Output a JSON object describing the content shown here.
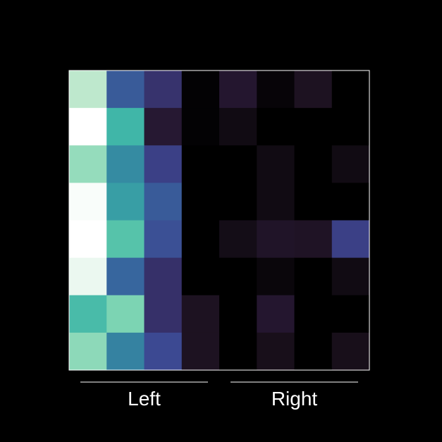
{
  "chart_data": {
    "type": "heatmap",
    "title": "",
    "xlabel": "",
    "ylabel": "",
    "rows": 8,
    "cols": 8,
    "colormap": "mako",
    "value_range": [
      0,
      1
    ],
    "column_groups": [
      {
        "label": "Left",
        "columns": [
          0,
          1,
          2,
          3
        ]
      },
      {
        "label": "Right",
        "columns": [
          4,
          5,
          6,
          7
        ]
      }
    ],
    "values": [
      [
        0.9,
        0.45,
        0.28,
        0.01,
        0.13,
        0.02,
        0.09,
        0.0
      ],
      [
        1.0,
        0.7,
        0.14,
        0.01,
        0.05,
        0.0,
        0.0,
        0.0
      ],
      [
        0.85,
        0.58,
        0.33,
        0.0,
        0.0,
        0.05,
        0.0,
        0.05
      ],
      [
        0.99,
        0.63,
        0.45,
        0.0,
        0.0,
        0.05,
        0.0,
        0.0
      ],
      [
        1.0,
        0.75,
        0.4,
        0.0,
        0.06,
        0.11,
        0.1,
        0.33
      ],
      [
        0.97,
        0.5,
        0.27,
        0.0,
        0.0,
        0.03,
        0.0,
        0.05
      ],
      [
        0.72,
        0.82,
        0.27,
        0.09,
        0.0,
        0.13,
        0.0,
        0.0
      ],
      [
        0.84,
        0.56,
        0.37,
        0.09,
        0.0,
        0.07,
        0.0,
        0.07
      ]
    ]
  },
  "colors": {
    "background": "#000000",
    "frame": "#ffffff",
    "bracket": "#ffffff",
    "label": "#ffffff"
  }
}
